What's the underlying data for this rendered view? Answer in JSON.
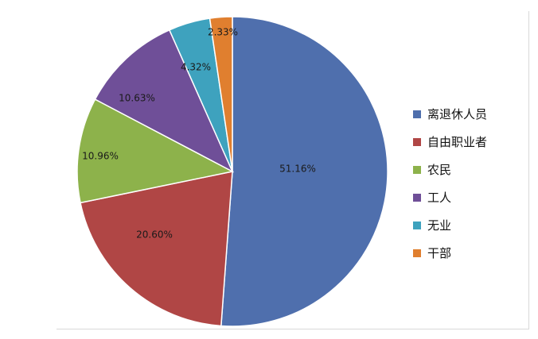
{
  "chart_data": {
    "type": "pie",
    "title": "",
    "slices": [
      {
        "label": "离退休人员",
        "value": 51.16,
        "display": "51.16%",
        "color": "#4F6FAD"
      },
      {
        "label": "自由职业者",
        "value": 20.6,
        "display": "20.60%",
        "color": "#B04645"
      },
      {
        "label": "农民",
        "value": 10.96,
        "display": "10.96%",
        "color": "#8DB24B"
      },
      {
        "label": "工人",
        "value": 10.63,
        "display": "10.63%",
        "color": "#6F4F98"
      },
      {
        "label": "无业",
        "value": 4.32,
        "display": "4.32%",
        "color": "#3EA2BE"
      },
      {
        "label": "干部",
        "value": 2.33,
        "display": "2.33%",
        "color": "#E07F2F"
      }
    ],
    "start_angle": "12 o'clock",
    "direction": "clockwise",
    "legend_position": "right"
  }
}
